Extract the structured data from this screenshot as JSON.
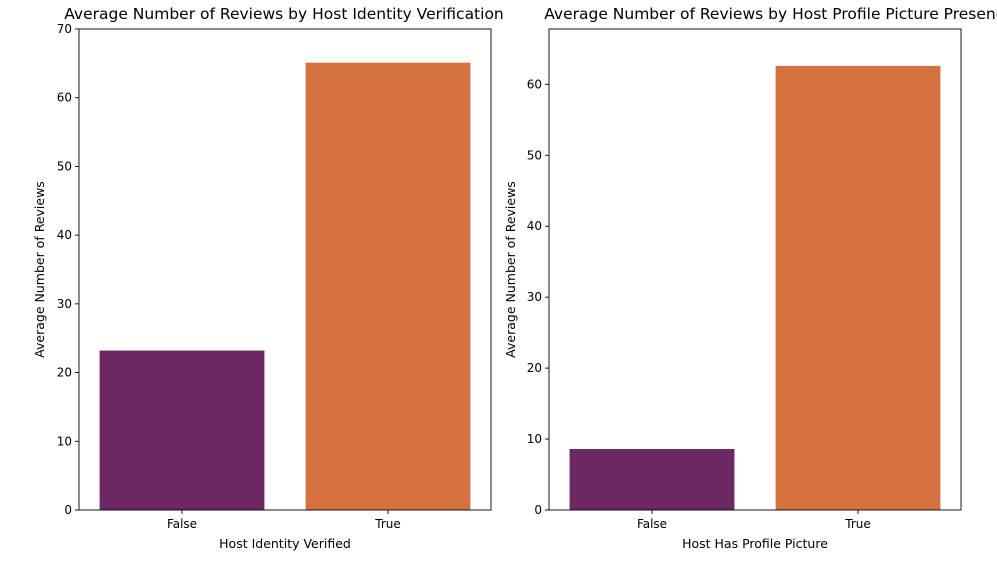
{
  "chart_data": [
    {
      "type": "bar",
      "title": "Average Number of Reviews by Host Identity Verification",
      "xlabel": "Host Identity Verified",
      "ylabel": "Average Number of Reviews",
      "categories": [
        "False",
        "True"
      ],
      "values": [
        23.2,
        65.1
      ],
      "ylim": [
        0,
        70
      ],
      "yticks": [
        0,
        10,
        20,
        30,
        40,
        50,
        60,
        70
      ],
      "colors": [
        "#6b2862",
        "#d4723f"
      ],
      "grid": false
    },
    {
      "type": "bar",
      "title": "Average Number of Reviews by Host Profile Picture Presence",
      "xlabel": "Host Has Profile Picture",
      "ylabel": "Average Number of Reviews",
      "categories": [
        "False",
        "True"
      ],
      "values": [
        8.6,
        62.6
      ],
      "ylim": [
        0,
        67.8
      ],
      "yticks": [
        0,
        10,
        20,
        30,
        40,
        50,
        60
      ],
      "colors": [
        "#6b2862",
        "#d4723f"
      ],
      "grid": false
    }
  ]
}
